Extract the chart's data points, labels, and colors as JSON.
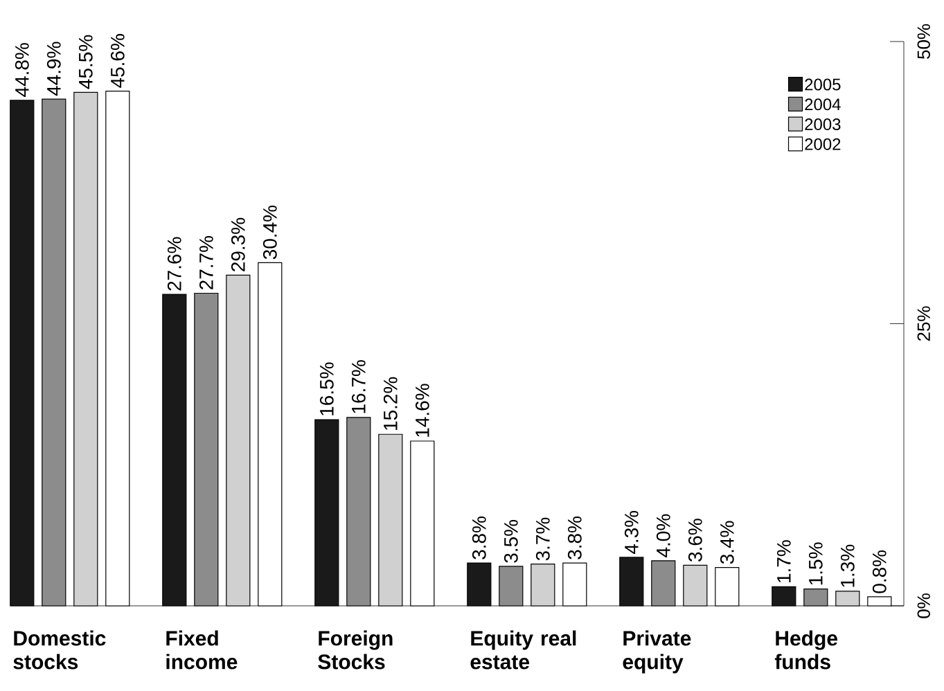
{
  "chart_data": {
    "type": "bar",
    "categories": [
      "Domestic stocks",
      "Fixed income",
      "Foreign Stocks",
      "Equity real estate",
      "Private equity",
      "Hedge funds"
    ],
    "series": [
      {
        "name": "2005",
        "color": "#1a1a1a",
        "values": [
          44.8,
          27.6,
          16.5,
          3.8,
          4.3,
          1.7
        ],
        "value_labels": [
          "44.8%",
          "27.6%",
          "16.5%",
          "3.8%",
          "4.3%",
          "1.7%"
        ]
      },
      {
        "name": "2004",
        "color": "#8c8c8c",
        "values": [
          44.9,
          27.7,
          16.7,
          3.5,
          4.0,
          1.5
        ],
        "value_labels": [
          "44.9%",
          "27.7%",
          "16.7%",
          "3.5%",
          "4.0%",
          "1.5%"
        ]
      },
      {
        "name": "2003",
        "color": "#d0d0d0",
        "values": [
          45.5,
          29.3,
          15.2,
          3.7,
          3.6,
          1.3
        ],
        "value_labels": [
          "45.5%",
          "29.3%",
          "15.2%",
          "3.7%",
          "3.6%",
          "1.3%"
        ]
      },
      {
        "name": "2002",
        "color": "#ffffff",
        "values": [
          45.6,
          30.4,
          14.6,
          3.8,
          3.4,
          0.8
        ],
        "value_labels": [
          "45.6%",
          "30.4%",
          "14.6%",
          "3.8%",
          "3.4%",
          "0.8%"
        ]
      }
    ],
    "ylim": [
      0,
      50
    ],
    "yticks": [
      {
        "value": 0,
        "label": "0%"
      },
      {
        "value": 25,
        "label": "25%"
      },
      {
        "value": 50,
        "label": "50%"
      }
    ],
    "legend": "top right"
  }
}
